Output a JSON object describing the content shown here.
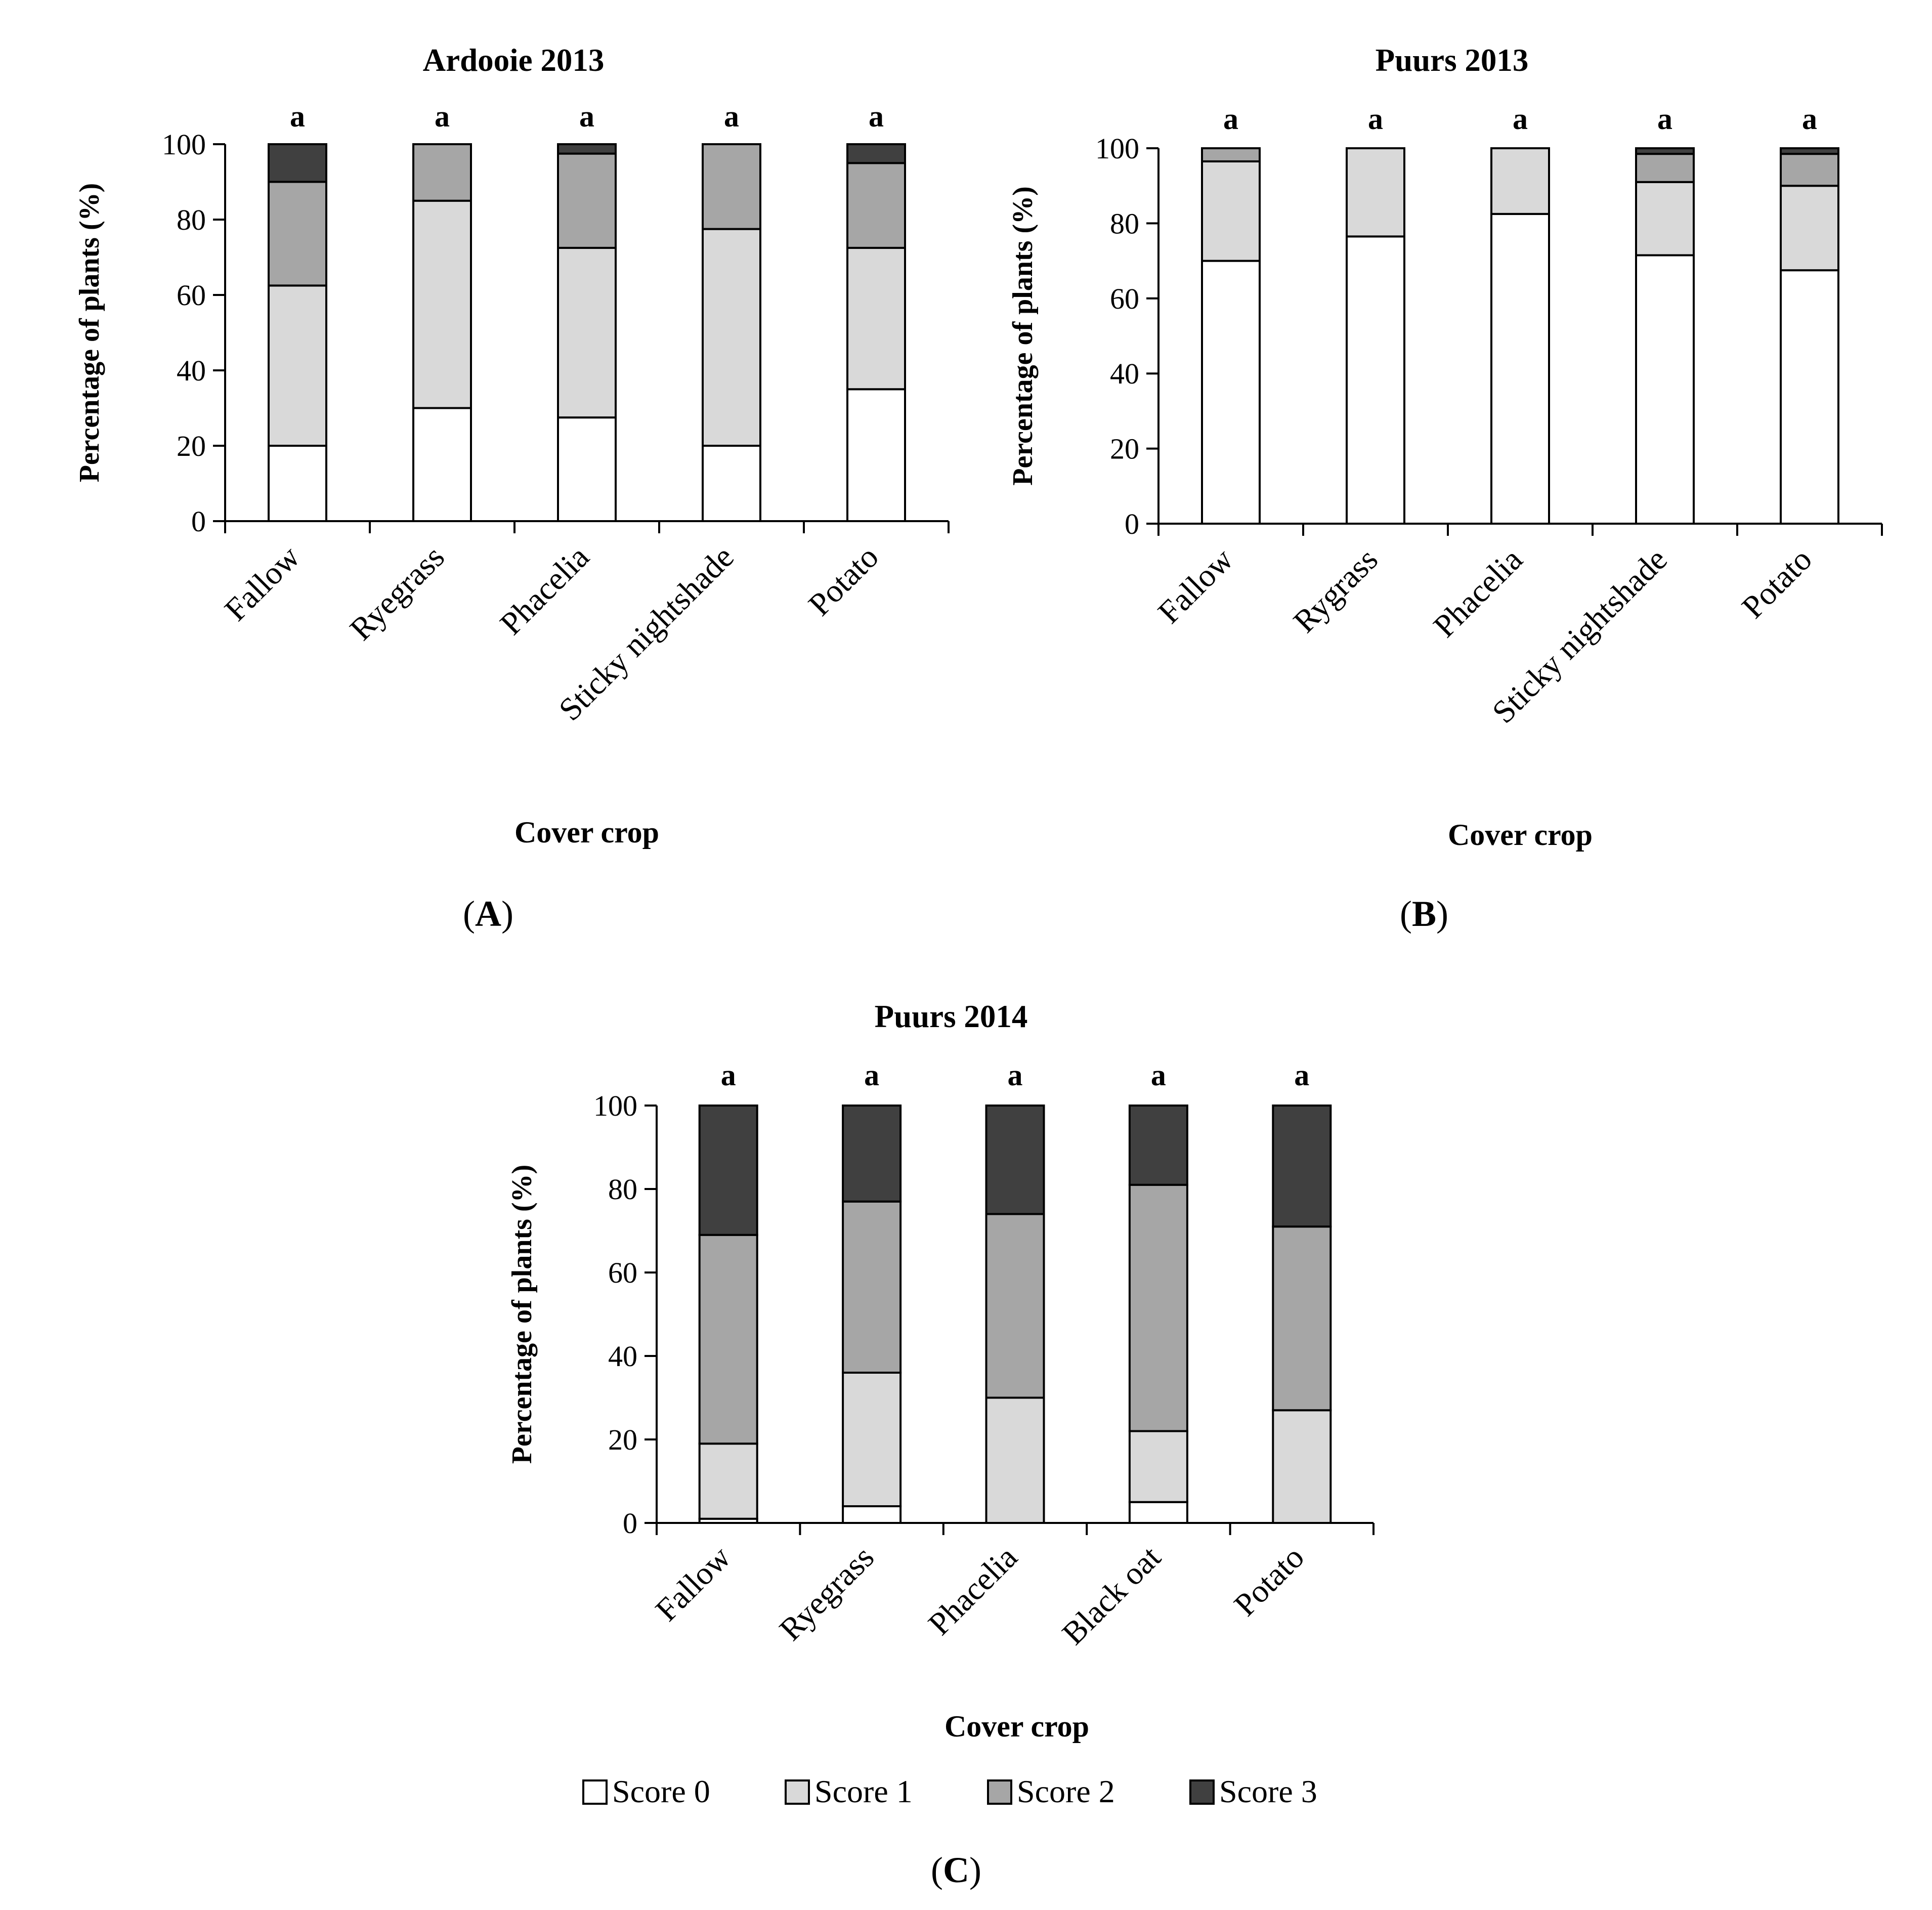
{
  "legend": {
    "items": [
      {
        "label": "Score 0",
        "color": "#ffffff"
      },
      {
        "label": "Score 1",
        "color": "#d9d9d9"
      },
      {
        "label": "Score 2",
        "color": "#a6a6a6"
      },
      {
        "label": "Score 3",
        "color": "#404040"
      }
    ]
  },
  "chart_data": [
    {
      "id": "A",
      "type": "bar",
      "stacked": true,
      "title": "Ardooie 2013",
      "panel_label": "A",
      "xlabel": "Cover crop",
      "ylabel": "Percentage of plants (%)",
      "ylim": [
        0,
        100
      ],
      "yticks": [
        0,
        20,
        40,
        60,
        80,
        100
      ],
      "categories": [
        "Fallow",
        "Ryegrass",
        "Phacelia",
        "Sticky nightshade",
        "Potato"
      ],
      "significance": [
        "a",
        "a",
        "a",
        "a",
        "a"
      ],
      "series": [
        {
          "name": "Score 0",
          "values": [
            20,
            30,
            27.5,
            20,
            35
          ]
        },
        {
          "name": "Score 1",
          "values": [
            42.5,
            55,
            45,
            57.5,
            37.5
          ]
        },
        {
          "name": "Score 2",
          "values": [
            27.5,
            15,
            25,
            22.5,
            22.5
          ]
        },
        {
          "name": "Score 3",
          "values": [
            10,
            0,
            2.5,
            0,
            5
          ]
        }
      ]
    },
    {
      "id": "B",
      "type": "bar",
      "stacked": true,
      "title": "Puurs 2013",
      "panel_label": "B",
      "xlabel": "Cover crop",
      "ylabel": "Percentage of plants (%)",
      "ylim": [
        0,
        100
      ],
      "yticks": [
        0,
        20,
        40,
        60,
        80,
        100
      ],
      "categories": [
        "Fallow",
        "Rygrass",
        "Phacelia",
        "Sticky nightshade",
        "Potato"
      ],
      "significance": [
        "a",
        "a",
        "a",
        "a",
        "a"
      ],
      "series": [
        {
          "name": "Score 0",
          "values": [
            70,
            76.5,
            82.5,
            71.5,
            67.5
          ]
        },
        {
          "name": "Score 1",
          "values": [
            26.5,
            23.5,
            17.5,
            19.5,
            22.5
          ]
        },
        {
          "name": "Score 2",
          "values": [
            3.5,
            0,
            0,
            7.5,
            8.5
          ]
        },
        {
          "name": "Score 3",
          "values": [
            0,
            0,
            0,
            1.5,
            1.5
          ]
        }
      ]
    },
    {
      "id": "C",
      "type": "bar",
      "stacked": true,
      "title": "Puurs 2014",
      "panel_label": "C",
      "xlabel": "Cover crop",
      "ylabel": "Percentage of plants (%)",
      "ylim": [
        0,
        100
      ],
      "yticks": [
        0,
        20,
        40,
        60,
        80,
        100
      ],
      "categories": [
        "Fallow",
        "Ryegrass",
        "Phacelia",
        "Black oat",
        "Potato"
      ],
      "significance": [
        "a",
        "a",
        "a",
        "a",
        "a"
      ],
      "series": [
        {
          "name": "Score 0",
          "values": [
            1,
            4,
            0,
            5,
            0
          ]
        },
        {
          "name": "Score 1",
          "values": [
            18,
            32,
            30,
            17,
            27
          ]
        },
        {
          "name": "Score 2",
          "values": [
            50,
            41,
            44,
            59,
            44
          ]
        },
        {
          "name": "Score 3",
          "values": [
            31,
            23,
            26,
            19,
            29
          ]
        }
      ]
    }
  ]
}
